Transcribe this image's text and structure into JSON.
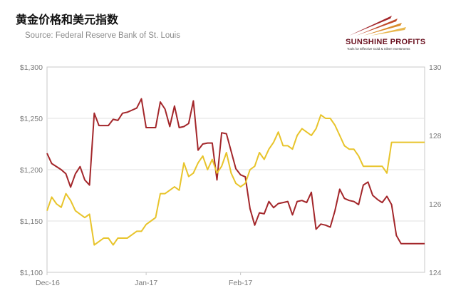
{
  "chart_data": {
    "type": "line",
    "title": "黄金价格和美元指数",
    "subtitle": "Source: Federal Reserve Bank of St. Louis",
    "x_labels": [
      "Dec-16",
      "Jan-17",
      "Feb-17"
    ],
    "y_left": {
      "ticks": [
        "$1,100",
        "$1,150",
        "$1,200",
        "$1,250",
        "$1,300"
      ],
      "range": [
        1100,
        1300
      ]
    },
    "y_right": {
      "ticks": [
        "124",
        "126",
        "128",
        "130"
      ],
      "range": [
        124,
        130
      ]
    },
    "x_range": [
      0,
      80
    ],
    "x_label_positions": [
      0,
      21,
      41
    ],
    "grid": "horizontal",
    "series": [
      {
        "color": "#a3262a",
        "axis": "left",
        "x": [
          0,
          1,
          3,
          4,
          5,
          6,
          7,
          8,
          9,
          10,
          11,
          12,
          13,
          14,
          15,
          16,
          17,
          18,
          19,
          20,
          21,
          22,
          23,
          24,
          25,
          26,
          27,
          28,
          29,
          30,
          31,
          32,
          33,
          34,
          35,
          36,
          37,
          38,
          39,
          40,
          41,
          42,
          43,
          44,
          45,
          46,
          47,
          48,
          49,
          50,
          51,
          52,
          53,
          54,
          55,
          56,
          57,
          58,
          59,
          60,
          61,
          62,
          63,
          64,
          65,
          66,
          67,
          68,
          69,
          70,
          71,
          72,
          73,
          74,
          75,
          76,
          77,
          78,
          79,
          80
        ],
        "y": [
          1216,
          1206,
          1200,
          1196,
          1183,
          1196,
          1203,
          1190,
          1185,
          1255,
          1243,
          1243,
          1243,
          1249,
          1248,
          1255,
          1256,
          1258,
          1260,
          1269,
          1241,
          1241,
          1241,
          1266,
          1259,
          1242,
          1262,
          1241,
          1242,
          1245,
          1267,
          1219,
          1225,
          1226,
          1226,
          1190,
          1236,
          1235,
          1218,
          1201,
          1195,
          1193,
          1162,
          1146,
          1158,
          1157,
          1169,
          1163,
          1167,
          1168,
          1169,
          1156,
          1169,
          1170,
          1168,
          1178,
          1142,
          1147,
          1146,
          1144,
          1160,
          1181,
          1172,
          1170,
          1169,
          1166,
          1185,
          1188,
          1175,
          1171,
          1168,
          1174,
          1166,
          1136,
          1128,
          1128,
          1128,
          1128,
          1128,
          1128
        ]
      },
      {
        "color": "#e8c42b",
        "axis": "right",
        "x": [
          0,
          1,
          2,
          3,
          4,
          5,
          6,
          7,
          8,
          9,
          10,
          11,
          12,
          13,
          14,
          15,
          16,
          17,
          18,
          19,
          20,
          21,
          22,
          23,
          24,
          25,
          26,
          27,
          28,
          29,
          30,
          31,
          32,
          33,
          34,
          35,
          36,
          37,
          38,
          39,
          40,
          41,
          42,
          43,
          44,
          45,
          46,
          47,
          48,
          49,
          50,
          51,
          52,
          53,
          54,
          55,
          56,
          57,
          58,
          59,
          60,
          61,
          62,
          63,
          64,
          65,
          66,
          67,
          68,
          69,
          70,
          71,
          72,
          73,
          74,
          75,
          76,
          77,
          78,
          79,
          80
        ],
        "y": [
          125.8,
          126.2,
          126.0,
          125.9,
          126.3,
          126.1,
          125.8,
          125.7,
          125.6,
          125.7,
          124.8,
          124.9,
          125.0,
          125.0,
          124.8,
          125.0,
          125.0,
          125.0,
          125.1,
          125.2,
          125.2,
          125.4,
          125.5,
          125.6,
          126.3,
          126.3,
          126.4,
          126.5,
          126.4,
          127.2,
          126.8,
          126.9,
          127.2,
          127.4,
          127.0,
          127.3,
          126.9,
          127.1,
          127.5,
          126.9,
          126.6,
          126.5,
          126.6,
          127.0,
          127.1,
          127.5,
          127.3,
          127.6,
          127.8,
          128.1,
          127.7,
          127.7,
          127.6,
          128.0,
          128.2,
          128.1,
          128.0,
          128.2,
          128.6,
          128.5,
          128.5,
          128.3,
          128.0,
          127.7,
          127.6,
          127.6,
          127.4,
          127.1,
          127.1,
          127.1,
          127.1,
          127.1,
          126.9,
          127.8,
          127.8,
          127.8,
          127.8,
          127.8,
          127.8,
          127.8,
          127.8
        ]
      }
    ]
  },
  "branding": {
    "logo_text": "SUNSHINE PROFITS",
    "tagline": "Tools for Effective Gold & Silver Investments"
  }
}
